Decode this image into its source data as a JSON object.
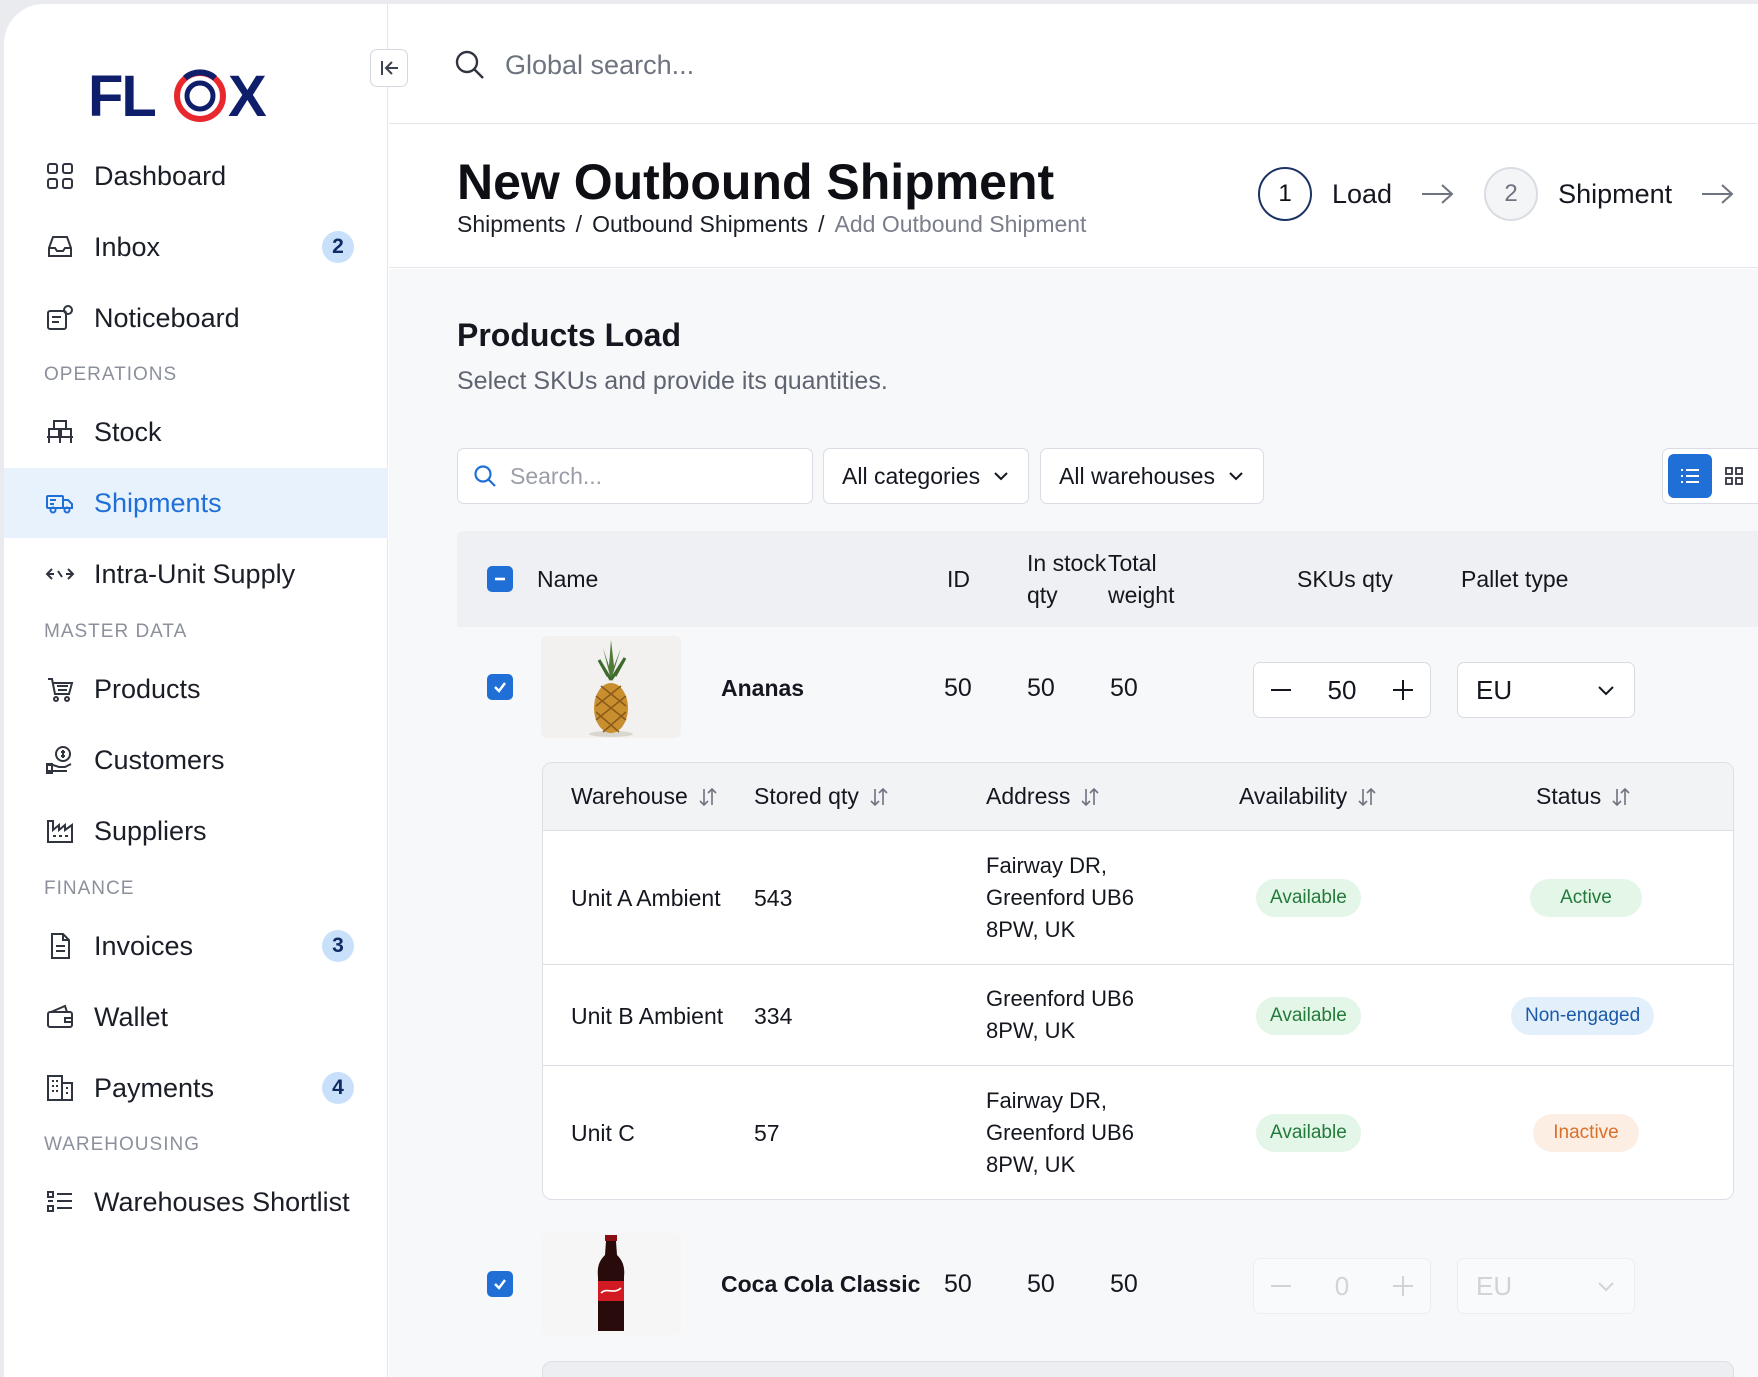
{
  "brand": {
    "logo_text": "FLOX",
    "colors": {
      "navy": "#0f1e6b",
      "red": "#e8282d",
      "accent": "#1f6fd6"
    }
  },
  "search": {
    "placeholder": "Global search..."
  },
  "sidebar": {
    "items": [
      {
        "label": "Dashboard",
        "icon": "grid-icon"
      },
      {
        "label": "Inbox",
        "icon": "inbox-icon",
        "badge": "2"
      },
      {
        "label": "Noticeboard",
        "icon": "noticeboard-icon"
      },
      {
        "label": "Stock",
        "icon": "pallet-icon"
      },
      {
        "label": "Shipments",
        "icon": "truck-icon",
        "active": true
      },
      {
        "label": "Intra-Unit Supply",
        "icon": "transfer-icon"
      },
      {
        "label": "Products",
        "icon": "cart-icon"
      },
      {
        "label": "Customers",
        "icon": "coin-hand-icon"
      },
      {
        "label": "Suppliers",
        "icon": "factory-icon"
      },
      {
        "label": "Invoices",
        "icon": "document-icon",
        "badge": "3"
      },
      {
        "label": "Wallet",
        "icon": "wallet-icon"
      },
      {
        "label": "Payments",
        "icon": "building-icon",
        "badge": "4"
      },
      {
        "label": "Warehouses Shortlist",
        "icon": "list-icon"
      }
    ],
    "sections": [
      "OPERATIONS",
      "MASTER DATA",
      "FINANCE",
      "WAREHOUSING"
    ]
  },
  "header": {
    "title": "New Outbound Shipment",
    "breadcrumb": [
      "Shipments",
      "Outbound Shipments",
      "Add Outbound Shipment"
    ],
    "steps": [
      {
        "num": "1",
        "label": "Load"
      },
      {
        "num": "2",
        "label": "Shipment"
      }
    ]
  },
  "products_load": {
    "title": "Products Load",
    "subtitle": "Select SKUs and provide its quantities.",
    "filters": {
      "search_placeholder": "Search...",
      "categories": "All categories",
      "warehouses": "All warehouses"
    },
    "columns": {
      "name": "Name",
      "id": "ID",
      "in_stock": "In stock",
      "qty": "qty",
      "total": "Total",
      "weight": "weight",
      "skus_qty": "SKUs qty",
      "pallet_type": "Pallet type"
    },
    "rows": [
      {
        "name": "Ananas",
        "id": "50",
        "in_stock_qty": "50",
        "total_weight": "50",
        "skus_qty": "50",
        "pallet": "EU"
      },
      {
        "name": "Coca Cola Classic",
        "id": "50",
        "in_stock_qty": "50",
        "total_weight": "50",
        "skus_qty": "0",
        "pallet": "EU"
      }
    ],
    "warehouse_table": {
      "columns": {
        "warehouse": "Warehouse",
        "stored_qty": "Stored qty",
        "address": "Address",
        "availability": "Availability",
        "status": "Status"
      },
      "rows": [
        {
          "warehouse": "Unit A Ambient",
          "stored": "543",
          "address": [
            "Fairway DR,",
            "Greenford UB6",
            "8PW, UK"
          ],
          "availability": "Available",
          "status": "Active"
        },
        {
          "warehouse": "Unit B Ambient",
          "stored": "334",
          "address": [
            "Greenford UB6",
            "8PW, UK"
          ],
          "availability": "Available",
          "status": "Non-engaged"
        },
        {
          "warehouse": "Unit C",
          "stored": "57",
          "address": [
            "Fairway DR,",
            "Greenford UB6",
            "8PW, UK"
          ],
          "availability": "Available",
          "status": "Inactive"
        }
      ]
    }
  }
}
